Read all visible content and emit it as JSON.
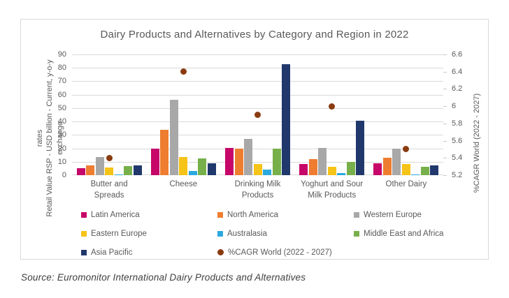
{
  "source": "Source: Euromonitor International Dairy Products and Alternatives",
  "chart_data": {
    "type": "bar",
    "title": "Dairy Products and Alternatives by Category and Region in 2022",
    "categories": [
      "Butter and Spreads",
      "Cheese",
      "Drinking Milk Products",
      "Yoghurt and Sour Milk Products",
      "Other Dairy"
    ],
    "series": [
      {
        "name": "Latin America",
        "color": "#c60669",
        "values": [
          5,
          20,
          20.5,
          8.5,
          9
        ]
      },
      {
        "name": "North America",
        "color": "#ee7d30",
        "values": [
          7.5,
          34,
          20,
          12,
          13
        ]
      },
      {
        "name": "Western Europe",
        "color": "#a8a8a8",
        "values": [
          13.5,
          56,
          27,
          20.5,
          20
        ]
      },
      {
        "name": "Eastern Europe",
        "color": "#f6c318",
        "values": [
          5.5,
          13.5,
          8.5,
          6.5,
          8.5
        ]
      },
      {
        "name": "Australasia",
        "color": "#2ba9de",
        "values": [
          0.4,
          3,
          4,
          1.5,
          0.4
        ]
      },
      {
        "name": "Middle East and Africa",
        "color": "#77b04b",
        "values": [
          7,
          12.5,
          20,
          10,
          6
        ]
      },
      {
        "name": "Asia Pacific",
        "color": "#20386b",
        "values": [
          7.5,
          9,
          82.5,
          40.5,
          7.5
        ]
      }
    ],
    "secondary_series": {
      "name": "%CAGR World (2022 - 2027)",
      "type": "scatter",
      "axis": "right",
      "color": "#8a3b10",
      "values": [
        5.4,
        6.4,
        5.9,
        6.0,
        5.5
      ]
    },
    "left_axis": {
      "label": "Retail Value RSP - USD billion - Current, y-o-y exchange rates",
      "label_lines": [
        "Retail Value RSP - USD billion - Current, y-o-y exchange",
        "rates"
      ],
      "min": 0,
      "max": 90,
      "ticks": [
        "0",
        "10",
        "20",
        "30",
        "40",
        "50",
        "60",
        "70",
        "80",
        "90"
      ]
    },
    "right_axis": {
      "label": "%CAGR World (2022 - 2027)",
      "min": 5.2,
      "max": 6.6,
      "ticks": [
        "5.2",
        "5.4",
        "5.6",
        "5.8",
        "6",
        "6.2",
        "6.4",
        "6.6"
      ]
    },
    "grid": true,
    "legend_position": "bottom"
  }
}
